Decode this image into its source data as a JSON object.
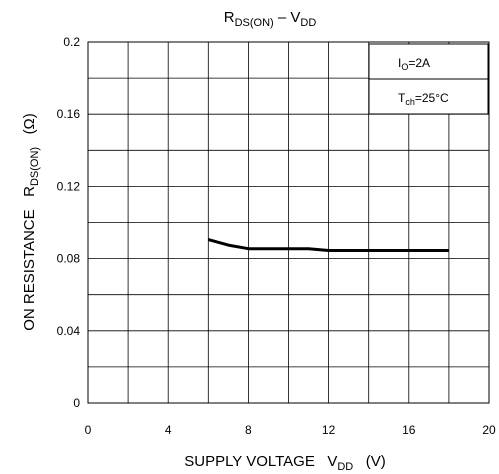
{
  "chart_data": {
    "type": "line",
    "title": {
      "main": "R",
      "sub1": "DS(ON)",
      "mid": " – V",
      "sub2": "DD"
    },
    "xlabel": {
      "main": "SUPPLY VOLTAGE   V",
      "sub": "DD",
      "unit": "   (V)"
    },
    "ylabel": {
      "main": "ON RESISTANCE   R",
      "sub": "DS(ON)",
      "unit": "   (Ω)"
    },
    "xlim": [
      0,
      20
    ],
    "ylim": [
      0,
      0.2
    ],
    "x_ticks": [
      "0",
      "4",
      "8",
      "12",
      "16",
      "20"
    ],
    "x_tick_values": [
      0,
      4,
      8,
      12,
      16,
      20
    ],
    "y_ticks": [
      "0",
      "0.04",
      "0.08",
      "0.12",
      "0.16",
      "0.2"
    ],
    "y_tick_values": [
      0,
      0.04,
      0.08,
      0.12,
      0.16,
      0.2
    ],
    "grid": true,
    "x_minor_step": 2,
    "y_minor_step": 0.02,
    "legend": {
      "placement": "top-right",
      "line1": {
        "main": "I",
        "sub": "O",
        "rest": "=2A"
      },
      "line2": {
        "main": "T",
        "sub": "ch",
        "rest": "=25°C"
      }
    },
    "series": [
      {
        "x": [
          6,
          7,
          8,
          9,
          10,
          11,
          12,
          13,
          14,
          15,
          16,
          17,
          18
        ],
        "y": [
          0.0905,
          0.0875,
          0.0855,
          0.0855,
          0.0855,
          0.0855,
          0.0845,
          0.0845,
          0.0845,
          0.0845,
          0.0845,
          0.0845,
          0.0845
        ],
        "color": "#000000"
      }
    ]
  }
}
